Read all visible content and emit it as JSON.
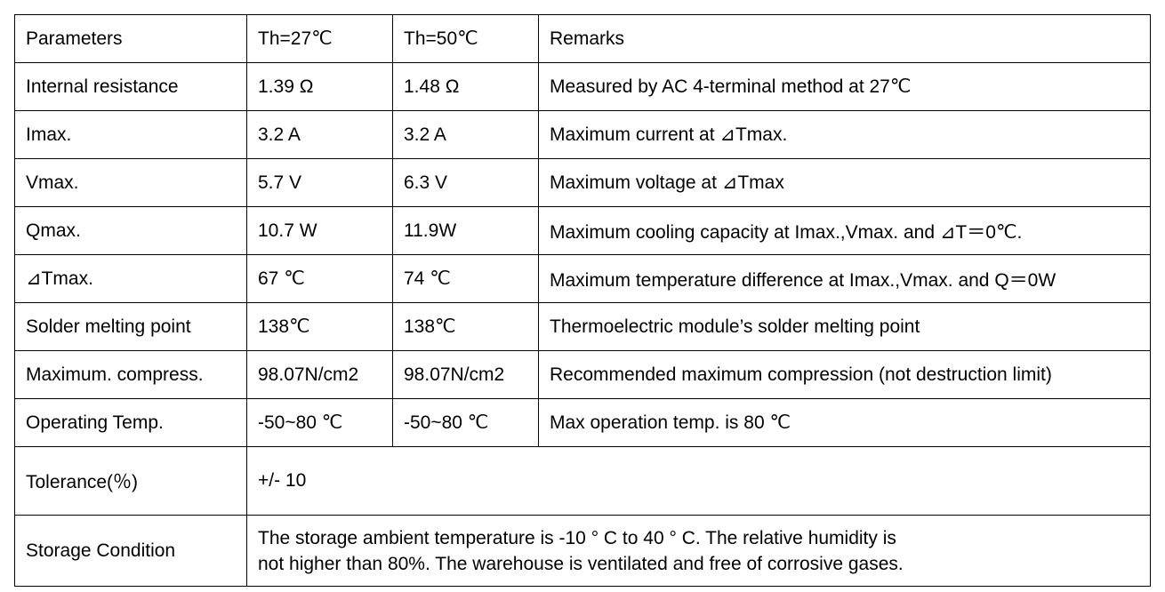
{
  "table": {
    "header": [
      "Parameters",
      "Th=27℃",
      "Th=50℃",
      "Remarks"
    ],
    "rows": [
      [
        "Internal resistance",
        "1.39 Ω",
        "1.48 Ω",
        "Measured by AC 4-terminal method at 27℃"
      ],
      [
        "Imax.",
        "3.2 A",
        "3.2 A",
        "Maximum current at ⊿Tmax."
      ],
      [
        "Vmax.",
        "5.7 V",
        "6.3  V",
        "Maximum voltage at ⊿Tmax"
      ],
      [
        "Qmax.",
        "10.7 W",
        "11.9W",
        "Maximum cooling capacity at Imax.,Vmax. and ⊿T＝0℃."
      ],
      [
        "⊿Tmax.",
        "67 ℃",
        "74 ℃",
        "Maximum temperature difference at Imax.,Vmax. and Q＝0W"
      ],
      [
        "Solder melting point",
        "138℃",
        "138℃",
        "Thermoelectric module’s solder melting point"
      ],
      [
        "Maximum. compress.",
        "98.07N/cm2",
        "98.07N/cm2",
        "Recommended maximum compression (not destruction limit)"
      ],
      [
        "Operating Temp.",
        "-50~80 ℃",
        "-50~80 ℃",
        "Max operation temp. is 80 ℃"
      ]
    ],
    "tolerance": {
      "label": "Tolerance(％)",
      "value": "+/- 10"
    },
    "storage": {
      "label": "Storage Condition",
      "lines": [
        "The storage ambient temperature is -10 ° C to 40 ° C. The relative humidity is",
        "not higher than 80%. The warehouse is ventilated and free of corrosive gases."
      ]
    }
  }
}
